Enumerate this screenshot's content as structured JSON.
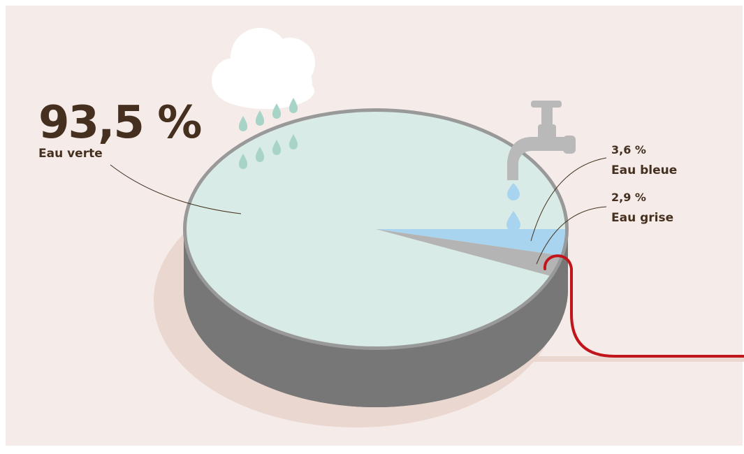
{
  "chart_data": {
    "type": "pie",
    "slices": [
      {
        "label": "Eau verte",
        "value_text": "93,5 %",
        "value": 93.5,
        "color": "#d8ebe6"
      },
      {
        "label": "Eau bleue",
        "value_text": "3,6 %",
        "value": 3.6,
        "color": "#a8d4f0"
      },
      {
        "label": "Eau grise",
        "value_text": "2,9 %",
        "value": 2.9,
        "color": "#b4b4b4"
      }
    ]
  },
  "colors": {
    "background": "#f5ecea",
    "shadow": "#ead7d0",
    "rim": "#999999",
    "side": "#777777",
    "text": "#45301f",
    "hose": "#c0151b",
    "cloud": "#ffffff",
    "rain": "#a8d4c8",
    "tap": "#b9b9b9"
  },
  "icons": [
    "cloud-icon",
    "raindrop-icon",
    "faucet-icon",
    "water-drop-icon",
    "hose-icon"
  ]
}
